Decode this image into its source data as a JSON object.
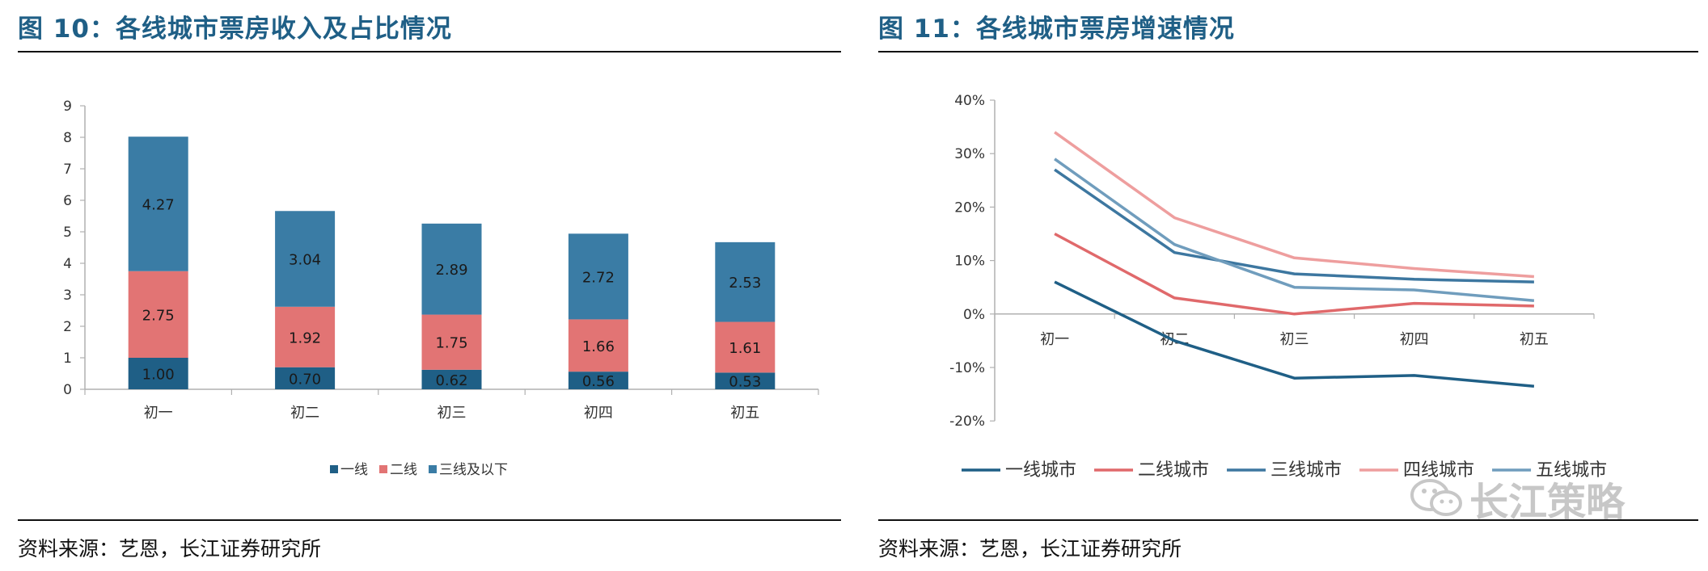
{
  "left_panel": {
    "title": "图 10：各线城市票房收入及占比情况",
    "source": "资料来源：艺恩，长江证券研究所"
  },
  "right_panel": {
    "title": "图 11：各线城市票房增速情况",
    "source": "资料来源：艺恩，长江证券研究所"
  },
  "watermark": {
    "text": "长江策略"
  },
  "chart_data": [
    {
      "type": "bar",
      "stacked": true,
      "title": "图 10：各线城市票房收入及占比情况",
      "categories": [
        "初一",
        "初二",
        "初三",
        "初四",
        "初五"
      ],
      "series": [
        {
          "name": "一线",
          "color": "#1f5f86",
          "values": [
            1.0,
            0.7,
            0.62,
            0.56,
            0.53
          ],
          "labels": [
            "1.00",
            "0.70",
            "0.62",
            "0.56",
            "0.53"
          ]
        },
        {
          "name": "二线",
          "color": "#e27474",
          "values": [
            2.75,
            1.92,
            1.75,
            1.66,
            1.61
          ],
          "labels": [
            "2.75",
            "1.92",
            "1.75",
            "1.66",
            "1.61"
          ]
        },
        {
          "name": "三线及以下",
          "color": "#3a7ca5",
          "values": [
            4.27,
            3.04,
            2.89,
            2.72,
            2.53
          ],
          "labels": [
            "4.27",
            "3.04",
            "2.89",
            "2.72",
            "2.53"
          ]
        }
      ],
      "yticks": [
        "0",
        "1",
        "2",
        "3",
        "4",
        "5",
        "6",
        "7",
        "8",
        "9"
      ],
      "ylim": [
        0,
        9
      ],
      "legend": "bottom"
    },
    {
      "type": "line",
      "title": "图 11：各线城市票房增速情况",
      "categories": [
        "初一",
        "初二",
        "初三",
        "初四",
        "初五"
      ],
      "series": [
        {
          "name": "一线城市",
          "color": "#1f5f86",
          "values": [
            6,
            -5,
            -12,
            -11.5,
            -13.5
          ]
        },
        {
          "name": "二线城市",
          "color": "#e0696b",
          "values": [
            15,
            3,
            0,
            2,
            1.5
          ]
        },
        {
          "name": "三线城市",
          "color": "#3d77a0",
          "values": [
            27,
            11.5,
            7.5,
            6.5,
            6
          ]
        },
        {
          "name": "四线城市",
          "color": "#ee9e9e",
          "values": [
            34,
            18,
            10.5,
            8.5,
            7
          ]
        },
        {
          "name": "五线城市",
          "color": "#709dbd",
          "values": [
            29,
            13,
            5,
            4.5,
            2.5
          ]
        }
      ],
      "yticks": [
        "40%",
        "30%",
        "20%",
        "10%",
        "0%",
        "-10%",
        "-20%"
      ],
      "ylim": [
        -20,
        40
      ],
      "legend": "bottom"
    }
  ]
}
